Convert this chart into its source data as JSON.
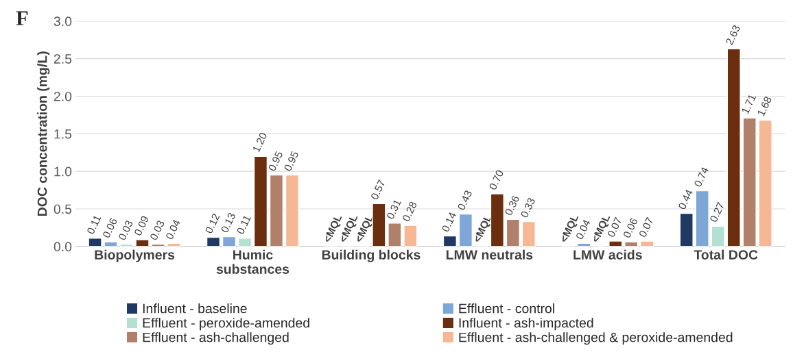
{
  "chart_data": {
    "type": "bar",
    "ylabel": "DOC concentration (mg/L)",
    "annotations": [
      "F"
    ],
    "categories": [
      "Biopolymers",
      "Humic\nsubstances",
      "Building blocks",
      "LMW neutrals",
      "LMW acids",
      "Total DOC"
    ],
    "series": [
      {
        "name": "Influent - baseline",
        "color": "#203864",
        "values": [
          0.11,
          0.12,
          null,
          0.14,
          null,
          0.44
        ],
        "value_labels": [
          "0.11",
          "0.12",
          "<MQL",
          "0.14",
          "<MQL",
          "0.44"
        ]
      },
      {
        "name": "Effluent - control",
        "color": "#7ea6d6",
        "values": [
          0.06,
          0.13,
          null,
          0.43,
          0.04,
          0.74
        ],
        "value_labels": [
          "0.06",
          "0.13",
          "<MQL",
          "0.43",
          "0.04",
          "0.74"
        ]
      },
      {
        "name": "Effluent - peroxide-amended",
        "color": "#b3e0d0",
        "values": [
          0.03,
          0.11,
          null,
          null,
          null,
          0.27
        ],
        "value_labels": [
          "0.03",
          "0.11",
          "<MQL",
          "<MQL",
          "<MQL",
          "0.27"
        ]
      },
      {
        "name": "Influent - ash-impacted",
        "color": "#6b2e0e",
        "values": [
          0.09,
          1.2,
          0.57,
          0.7,
          0.07,
          2.63
        ],
        "value_labels": [
          "0.09",
          "1.20",
          "0.57",
          "0.70",
          "0.07",
          "2.63"
        ]
      },
      {
        "name": "Effluent - ash-challenged",
        "color": "#b0806a",
        "values": [
          0.03,
          0.95,
          0.31,
          0.36,
          0.06,
          1.71
        ],
        "value_labels": [
          "0.03",
          "0.95",
          "0.31",
          "0.36",
          "0.06",
          "1.71"
        ]
      },
      {
        "name": "Effluent - ash-challenged & peroxide-amended",
        "color": "#f6b894",
        "values": [
          0.04,
          0.95,
          0.28,
          0.33,
          0.07,
          1.68
        ],
        "value_labels": [
          "0.04",
          "0.95",
          "0.28",
          "0.33",
          "0.07",
          "1.68"
        ]
      }
    ],
    "ylim": [
      0,
      3
    ],
    "yticks": [
      {
        "value": 0,
        "label": "0.0"
      },
      {
        "value": 0.5,
        "label": "0.5"
      },
      {
        "value": 1,
        "label": "1.0"
      },
      {
        "value": 1.5,
        "label": "1.5"
      },
      {
        "value": 2,
        "label": "2.0"
      },
      {
        "value": 2.5,
        "label": "2.5"
      },
      {
        "value": 3,
        "label": "3.0"
      }
    ],
    "grid": "y",
    "legend": "bottom"
  }
}
